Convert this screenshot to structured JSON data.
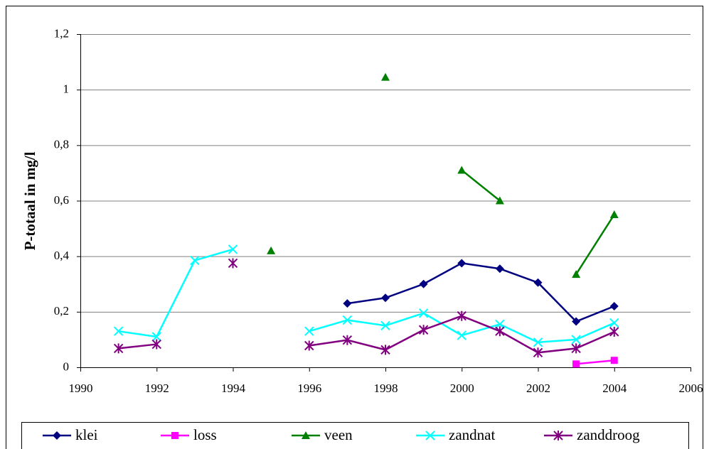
{
  "chart_data": {
    "type": "line",
    "y_label": "P-totaal in mg/l",
    "x": [
      1991,
      1992,
      1993,
      1994,
      1995,
      1996,
      1997,
      1998,
      1999,
      2000,
      2001,
      2002,
      2003,
      2004
    ],
    "series": [
      {
        "name": "klei",
        "color": "#000080",
        "marker": "diamond",
        "values": [
          null,
          null,
          null,
          null,
          null,
          null,
          0.23,
          0.25,
          0.3,
          0.375,
          0.355,
          0.305,
          0.165,
          0.22
        ]
      },
      {
        "name": "loss",
        "color": "#ff00ff",
        "marker": "square",
        "values": [
          null,
          null,
          null,
          null,
          null,
          null,
          null,
          null,
          null,
          null,
          null,
          null,
          0.012,
          0.025
        ]
      },
      {
        "name": "veen",
        "color": "#008000",
        "marker": "triangle",
        "values": [
          null,
          null,
          null,
          null,
          0.42,
          null,
          null,
          1.045,
          null,
          0.71,
          0.6,
          null,
          0.335,
          0.55
        ]
      },
      {
        "name": "zandnat",
        "color": "#00ffff",
        "marker": "x",
        "values": [
          0.13,
          0.11,
          0.385,
          0.425,
          null,
          0.13,
          0.17,
          0.15,
          0.195,
          0.115,
          0.155,
          0.09,
          0.1,
          0.16
        ]
      },
      {
        "name": "zanddroog",
        "color": "#800080",
        "marker": "star",
        "values": [
          0.068,
          0.083,
          null,
          0.375,
          null,
          0.078,
          0.098,
          0.063,
          0.135,
          0.185,
          0.13,
          0.053,
          0.068,
          0.128
        ]
      }
    ],
    "xlim": [
      1990,
      2006
    ],
    "xticks": [
      1990,
      1992,
      1994,
      1996,
      1998,
      2000,
      2002,
      2004,
      2006
    ],
    "ylim": [
      0,
      1.2
    ],
    "yticks": [
      0,
      {
        "value": 0.2,
        "label": "0,2"
      },
      {
        "value": 0.4,
        "label": "0,4"
      },
      {
        "value": 0.6,
        "label": "0,6"
      },
      {
        "value": 0.8,
        "label": "0,8"
      },
      1,
      {
        "value": 1.2,
        "label": "1,2"
      }
    ],
    "grid": true,
    "legend": "bottom"
  }
}
